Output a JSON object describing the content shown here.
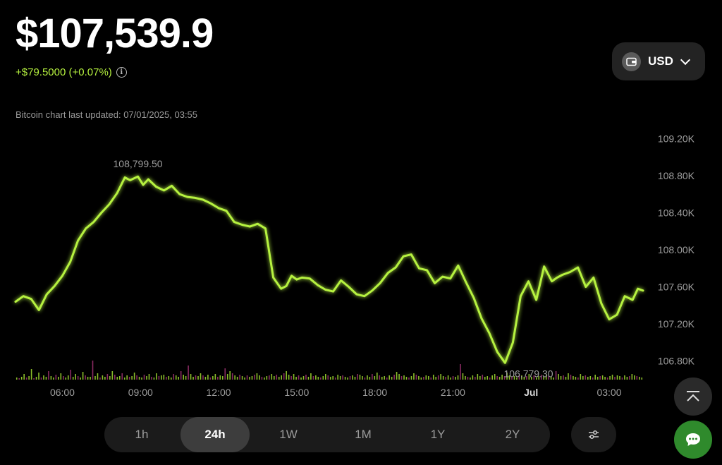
{
  "header": {
    "price": "$107,539.9",
    "change": "+$79.5000 (+0.07%)",
    "info_glyph": "i",
    "updated": "Bitcoin chart last updated: 07/01/2025, 03:55"
  },
  "currency": {
    "label": "USD",
    "icon": "wallet-icon"
  },
  "colors": {
    "line": "#b6f23f",
    "vol_up": "#8bbd2a",
    "vol_down": "#8a2b62",
    "label": "#9e9e9e"
  },
  "tabs": [
    "1h",
    "24h",
    "1W",
    "1M",
    "1Y",
    "2Y"
  ],
  "active_tab": "24h",
  "chart_data": {
    "type": "line",
    "ylim": [
      106600,
      109400
    ],
    "y_ticks": [
      {
        "value": 109200,
        "label": "109.20K"
      },
      {
        "value": 108800,
        "label": "108.80K"
      },
      {
        "value": 108400,
        "label": "108.40K"
      },
      {
        "value": 108000,
        "label": "108.00K"
      },
      {
        "value": 107600,
        "label": "107.60K"
      },
      {
        "value": 107200,
        "label": "107.20K"
      },
      {
        "value": 106800,
        "label": "106.80K"
      }
    ],
    "x_range": [
      4.2,
      28.3
    ],
    "x_ticks": [
      {
        "value": 6,
        "label": "06:00"
      },
      {
        "value": 9,
        "label": "09:00"
      },
      {
        "value": 12,
        "label": "12:00"
      },
      {
        "value": 15,
        "label": "15:00"
      },
      {
        "value": 18,
        "label": "18:00"
      },
      {
        "value": 21,
        "label": "21:00"
      },
      {
        "value": 24,
        "label": "Jul"
      },
      {
        "value": 27,
        "label": "03:00"
      }
    ],
    "high": {
      "x": 8.9,
      "y": 108799.5,
      "label": "108,799.50"
    },
    "low": {
      "x": 23.9,
      "y": 106779.3,
      "label": "106,779.30"
    },
    "series": [
      {
        "x": [
          4.2,
          4.5,
          4.8,
          5.1,
          5.4,
          5.7,
          6.0,
          6.3,
          6.6,
          6.9,
          7.2,
          7.5,
          7.8,
          8.1,
          8.4,
          8.6,
          8.9,
          9.1,
          9.3,
          9.6,
          9.9,
          10.2,
          10.5,
          10.8,
          11.1,
          11.4,
          11.7,
          12.0,
          12.3,
          12.6,
          12.9,
          13.2,
          13.5,
          13.8,
          14.1,
          14.4,
          14.6,
          14.8,
          15.0,
          15.2,
          15.5,
          15.8,
          16.1,
          16.4,
          16.7,
          17.0,
          17.3,
          17.6,
          17.9,
          18.2,
          18.5,
          18.8,
          19.1,
          19.4,
          19.7,
          20.0,
          20.3,
          20.6,
          20.9,
          21.2,
          21.5,
          21.8,
          22.1,
          22.4,
          22.7,
          23.0,
          23.3,
          23.6,
          23.9,
          24.2,
          24.5,
          24.8,
          25.0,
          25.2,
          25.5,
          25.8,
          26.1,
          26.4,
          26.7,
          27.0,
          27.3,
          27.6,
          27.9,
          28.1,
          28.3
        ],
        "y": [
          107440,
          107500,
          107470,
          107350,
          107520,
          107610,
          107720,
          107870,
          108100,
          108230,
          108300,
          108400,
          108490,
          108610,
          108780,
          108750,
          108790,
          108700,
          108760,
          108680,
          108640,
          108690,
          108600,
          108570,
          108560,
          108540,
          108500,
          108450,
          108420,
          108300,
          108270,
          108250,
          108280,
          108230,
          107700,
          107580,
          107610,
          107720,
          107680,
          107700,
          107690,
          107620,
          107570,
          107550,
          107670,
          107600,
          107520,
          107500,
          107560,
          107640,
          107750,
          107810,
          107930,
          107950,
          107800,
          107780,
          107640,
          107710,
          107690,
          107830,
          107650,
          107480,
          107260,
          107100,
          106900,
          106780,
          107000,
          107500,
          107660,
          107460,
          107820,
          107660,
          107700,
          107730,
          107760,
          107810,
          107600,
          107700,
          107420,
          107250,
          107300,
          107500,
          107460,
          107580,
          107560
        ]
      }
    ],
    "volume": {
      "bars": [
        3,
        2,
        4,
        8,
        3,
        5,
        15,
        2,
        4,
        10,
        3,
        6,
        4,
        12,
        5,
        3,
        7,
        4,
        9,
        5,
        3,
        6,
        14,
        4,
        8,
        5,
        3,
        11,
        6,
        4,
        4,
        27,
        5,
        9,
        3,
        6,
        4,
        8,
        5,
        12,
        7,
        4,
        5,
        9,
        3,
        6,
        4,
        5,
        10,
        6,
        4,
        3,
        7,
        5,
        8,
        4,
        3,
        9,
        5,
        6,
        7,
        4,
        5,
        3,
        8,
        6,
        4,
        12,
        7,
        5,
        20,
        8,
        4,
        6,
        5,
        9,
        6,
        4,
        7,
        3,
        5,
        8,
        4,
        6,
        5,
        16,
        8,
        12,
        9,
        6,
        4,
        7,
        5,
        3,
        6,
        4,
        5,
        7,
        9,
        6,
        4,
        3,
        5,
        6,
        8,
        5,
        7,
        4,
        6,
        9,
        12,
        7,
        5,
        8,
        4,
        6,
        3,
        5,
        7,
        4,
        9,
        5,
        6,
        4,
        3,
        5,
        8,
        6,
        4,
        5,
        3,
        7,
        5,
        6,
        4,
        3,
        5,
        6,
        4,
        8,
        7,
        5,
        3,
        6,
        4,
        8,
        5,
        10,
        6,
        4,
        5,
        3,
        6,
        4,
        7,
        11,
        8,
        5,
        6,
        4,
        3,
        5,
        9,
        7,
        5,
        3,
        4,
        6,
        5,
        3,
        7,
        4,
        6,
        8,
        5,
        4,
        6,
        3,
        5,
        4,
        6,
        22,
        9,
        5,
        4,
        3,
        6,
        4,
        8,
        5,
        7,
        4,
        5,
        3,
        6,
        8,
        5,
        4,
        7,
        5,
        10,
        6,
        4,
        5,
        3,
        7,
        6,
        4,
        5,
        8,
        4,
        6,
        3,
        5,
        7,
        4,
        6,
        5,
        4,
        3,
        12,
        8,
        5,
        6,
        4,
        9,
        7,
        5,
        4,
        3,
        8,
        5,
        6,
        4,
        5,
        3,
        7,
        4,
        5,
        6,
        4,
        3,
        5,
        7,
        4,
        6,
        5,
        3,
        6,
        4,
        5,
        8,
        6,
        5,
        4,
        3
      ],
      "max": 70
    }
  }
}
